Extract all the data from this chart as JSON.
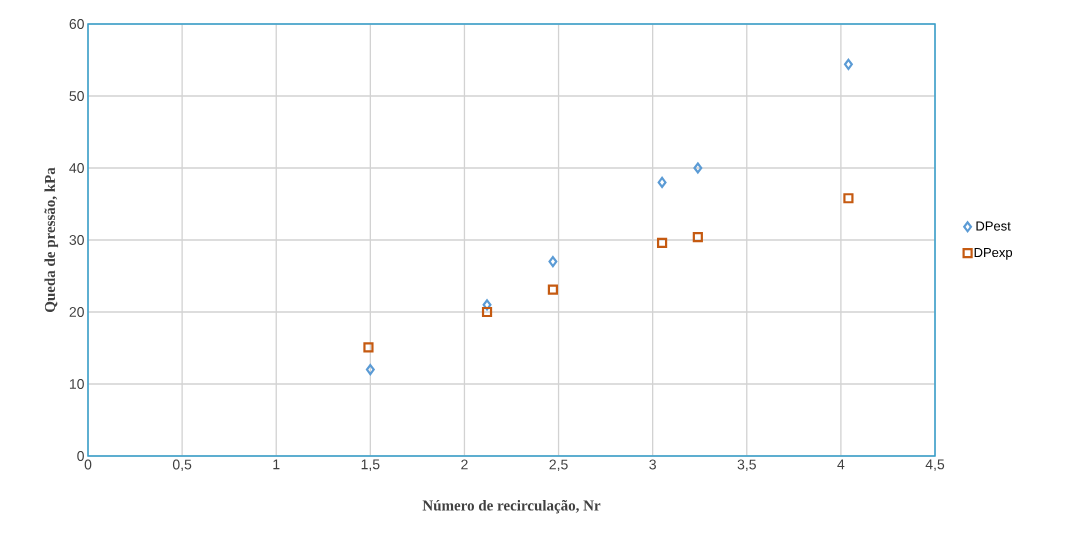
{
  "chart_data": {
    "type": "scatter",
    "xlabel": "Número de recirculação, Nr",
    "ylabel": "Queda de pressão, kPa",
    "series": [
      {
        "name": "DPest",
        "color": "#5b9bd5",
        "marker": "diamond",
        "x": [
          1.5,
          2.12,
          2.47,
          3.05,
          3.24,
          4.04
        ],
        "values": [
          12,
          21,
          27,
          38,
          40,
          54.4
        ]
      },
      {
        "name": "DPexp",
        "color": "#c55a11",
        "marker": "square",
        "x": [
          1.49,
          2.12,
          2.47,
          3.05,
          3.24,
          4.04
        ],
        "values": [
          15.1,
          20,
          23.1,
          29.6,
          30.4,
          35.8
        ]
      }
    ],
    "xlim": [
      0,
      4.5
    ],
    "ylim": [
      0,
      60
    ],
    "xticks": [
      0,
      {
        "value": 0.5,
        "label": "0,5"
      },
      1,
      {
        "value": 1.5,
        "label": "1,5"
      },
      2,
      {
        "value": 2.5,
        "label": "2,5"
      },
      3,
      {
        "value": 3.5,
        "label": "3,5"
      },
      4,
      {
        "value": 4.5,
        "label": "4,5"
      }
    ],
    "yticks": [
      0,
      10,
      20,
      30,
      40,
      50,
      60
    ],
    "grid": true,
    "legend": "right"
  }
}
